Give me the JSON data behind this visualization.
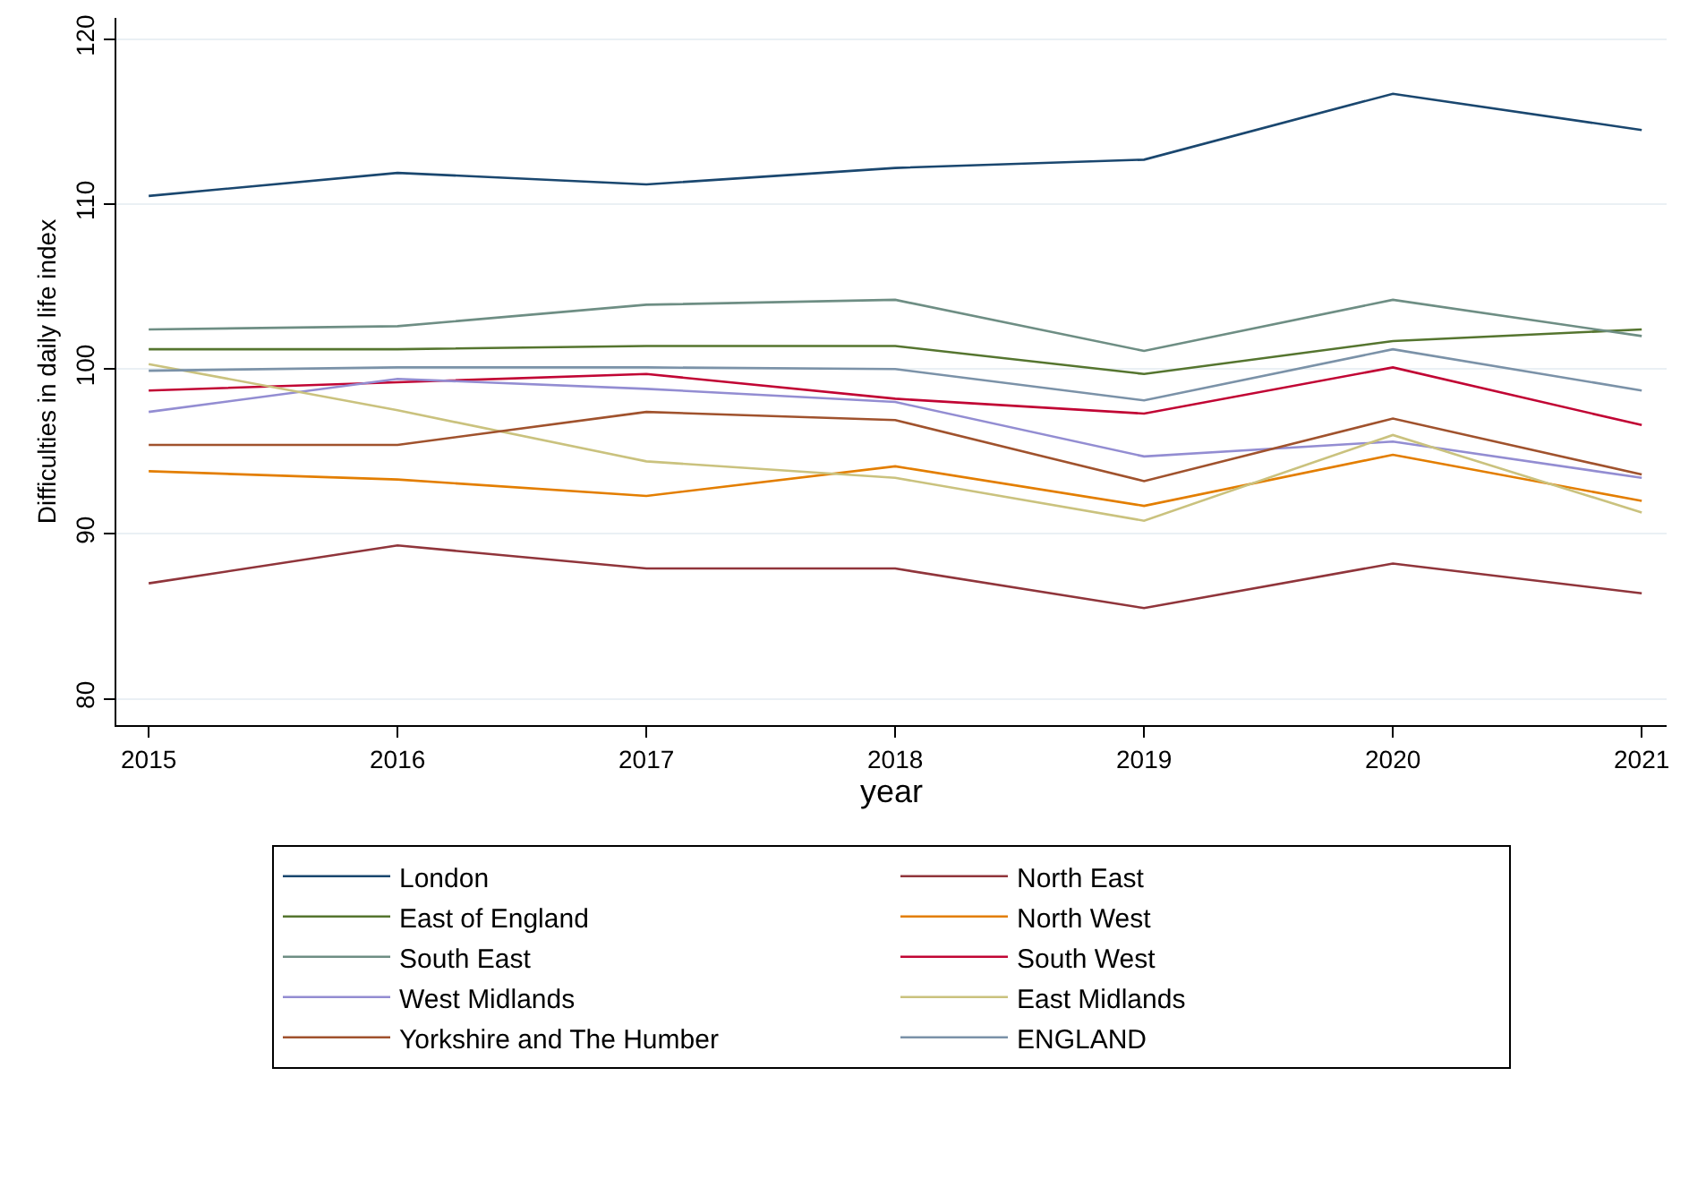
{
  "chart_data": {
    "type": "line",
    "xlabel": "year",
    "ylabel": "Difficulties in daily life index",
    "x": [
      2015,
      2016,
      2017,
      2018,
      2019,
      2020,
      2021
    ],
    "xlim": [
      2014.87,
      2021.1
    ],
    "xticks": [
      2015,
      2016,
      2017,
      2018,
      2019,
      2020,
      2021
    ],
    "ylim": [
      78.4,
      121.3
    ],
    "yticks": [
      80,
      90,
      100,
      110,
      120
    ],
    "grid": "y",
    "legend": "bottom",
    "marker": "none",
    "line_style": "solid",
    "series": [
      {
        "name": "London",
        "color": "#1a476f",
        "values": [
          110.5,
          111.9,
          111.2,
          112.2,
          112.7,
          116.7,
          114.5
        ]
      },
      {
        "name": "North East",
        "color": "#90353b",
        "values": [
          87.0,
          89.3,
          87.9,
          87.9,
          85.5,
          88.2,
          86.4
        ]
      },
      {
        "name": "East of England",
        "color": "#55752f",
        "values": [
          101.2,
          101.2,
          101.4,
          101.4,
          99.7,
          101.7,
          102.4
        ]
      },
      {
        "name": "North West",
        "color": "#e37e00",
        "values": [
          93.8,
          93.3,
          92.3,
          94.1,
          91.7,
          94.8,
          92.0
        ]
      },
      {
        "name": "South East",
        "color": "#6e8e84",
        "values": [
          102.4,
          102.6,
          103.9,
          104.2,
          101.1,
          104.2,
          102.0
        ]
      },
      {
        "name": "South West",
        "color": "#c10534",
        "values": [
          98.7,
          99.2,
          99.7,
          98.2,
          97.3,
          100.1,
          96.6
        ]
      },
      {
        "name": "West Midlands",
        "color": "#938dd2",
        "values": [
          97.4,
          99.4,
          98.8,
          98.0,
          94.7,
          95.6,
          93.4
        ]
      },
      {
        "name": "East Midlands",
        "color": "#cac27e",
        "values": [
          100.3,
          97.5,
          94.4,
          93.4,
          90.8,
          96.0,
          91.3
        ]
      },
      {
        "name": "Yorkshire and The Humber",
        "color": "#a0522d",
        "values": [
          95.4,
          95.4,
          97.4,
          96.9,
          93.2,
          97.0,
          93.6
        ]
      },
      {
        "name": "ENGLAND",
        "color": "#7b92a8",
        "values": [
          99.9,
          100.1,
          100.1,
          100.0,
          98.1,
          101.2,
          98.7
        ]
      }
    ]
  }
}
